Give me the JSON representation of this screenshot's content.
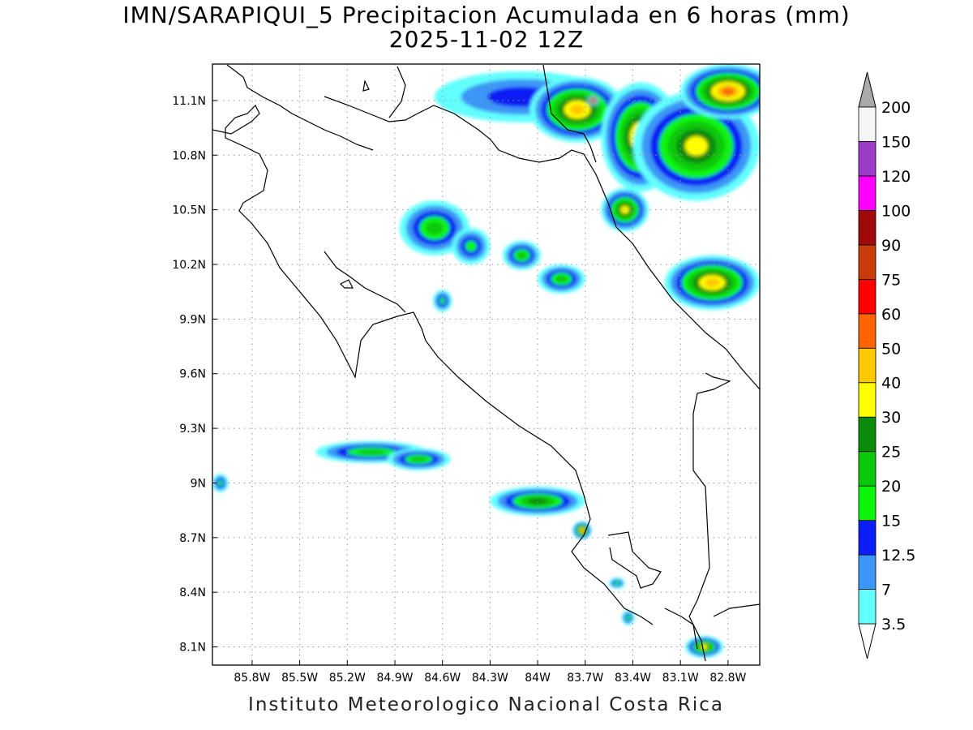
{
  "title": {
    "line1": "IMN/SARAPIQUI_5 Precipitacion Acumulada en 6 horas (mm)",
    "line2": "2025-11-02 12Z"
  },
  "footer": "Instituto Meteorologico Nacional Costa Rica",
  "map": {
    "lon_range": [
      -86.05,
      -82.6
    ],
    "lat_range": [
      8.0,
      11.3
    ],
    "lon_ticks": [
      {
        "v": -85.8,
        "label": "85.8W"
      },
      {
        "v": -85.5,
        "label": "85.5W"
      },
      {
        "v": -85.2,
        "label": "85.2W"
      },
      {
        "v": -84.9,
        "label": "84.9W"
      },
      {
        "v": -84.6,
        "label": "84.6W"
      },
      {
        "v": -84.3,
        "label": "84.3W"
      },
      {
        "v": -84.0,
        "label": "84W"
      },
      {
        "v": -83.7,
        "label": "83.7W"
      },
      {
        "v": -83.4,
        "label": "83.4W"
      },
      {
        "v": -83.1,
        "label": "83.1W"
      },
      {
        "v": -82.8,
        "label": "82.8W"
      }
    ],
    "lat_ticks": [
      {
        "v": 11.1,
        "label": "11.1N"
      },
      {
        "v": 10.8,
        "label": "10.8N"
      },
      {
        "v": 10.5,
        "label": "10.5N"
      },
      {
        "v": 10.2,
        "label": "10.2N"
      },
      {
        "v": 9.9,
        "label": "9.9N"
      },
      {
        "v": 9.6,
        "label": "9.6N"
      },
      {
        "v": 9.3,
        "label": "9.3N"
      },
      {
        "v": 9.0,
        "label": "9N"
      },
      {
        "v": 8.7,
        "label": "8.7N"
      },
      {
        "v": 8.4,
        "label": "8.4N"
      },
      {
        "v": 8.1,
        "label": "8.1N"
      }
    ],
    "grid": "dotted"
  },
  "colorbar": {
    "labels": [
      "3.5",
      "7",
      "12.5",
      "15",
      "20",
      "25",
      "30",
      "40",
      "50",
      "60",
      "75",
      "90",
      "100",
      "120",
      "150",
      "200"
    ],
    "colors": [
      "#62ffff",
      "#3c96f5",
      "#0a1ef5",
      "#0af50a",
      "#0ac80a",
      "#0a8c0a",
      "#ffff00",
      "#ffc800",
      "#ff6400",
      "#ff0000",
      "#c83c0a",
      "#a00a0a",
      "#ff00ff",
      "#9b3cc8",
      "#f5f5f5"
    ],
    "top_arrow_color": "#aaaaaa",
    "bottom_arrow_color": "#ffffff"
  },
  "precip_cells": [
    {
      "lon": -84.1,
      "lat": 11.12,
      "v": 14,
      "rx": 0.55,
      "ry": 0.14
    },
    {
      "lon": -83.75,
      "lat": 11.05,
      "v": 45,
      "rx": 0.3,
      "ry": 0.18
    },
    {
      "lon": -83.65,
      "lat": 11.1,
      "v": 120,
      "rx": 0.04,
      "ry": 0.03
    },
    {
      "lon": -83.35,
      "lat": 10.9,
      "v": 40,
      "rx": 0.25,
      "ry": 0.3
    },
    {
      "lon": -83.0,
      "lat": 10.85,
      "v": 35,
      "rx": 0.4,
      "ry": 0.3
    },
    {
      "lon": -82.8,
      "lat": 11.15,
      "v": 50,
      "rx": 0.3,
      "ry": 0.15
    },
    {
      "lon": -83.45,
      "lat": 10.5,
      "v": 30,
      "rx": 0.15,
      "ry": 0.12
    },
    {
      "lon": -82.9,
      "lat": 10.1,
      "v": 45,
      "rx": 0.3,
      "ry": 0.15
    },
    {
      "lon": -84.65,
      "lat": 10.4,
      "v": 20,
      "rx": 0.22,
      "ry": 0.15
    },
    {
      "lon": -84.42,
      "lat": 10.3,
      "v": 18,
      "rx": 0.12,
      "ry": 0.1
    },
    {
      "lon": -84.1,
      "lat": 10.25,
      "v": 22,
      "rx": 0.12,
      "ry": 0.08
    },
    {
      "lon": -83.85,
      "lat": 10.12,
      "v": 24,
      "rx": 0.15,
      "ry": 0.08
    },
    {
      "lon": -84.6,
      "lat": 10.0,
      "v": 18,
      "rx": 0.06,
      "ry": 0.06
    },
    {
      "lon": -85.05,
      "lat": 9.17,
      "v": 20,
      "rx": 0.35,
      "ry": 0.06
    },
    {
      "lon": -84.75,
      "lat": 9.13,
      "v": 24,
      "rx": 0.2,
      "ry": 0.06
    },
    {
      "lon": -84.0,
      "lat": 8.9,
      "v": 28,
      "rx": 0.3,
      "ry": 0.08
    },
    {
      "lon": -83.72,
      "lat": 8.74,
      "v": 40,
      "rx": 0.06,
      "ry": 0.05
    },
    {
      "lon": -82.95,
      "lat": 8.1,
      "v": 30,
      "rx": 0.12,
      "ry": 0.06
    },
    {
      "lon": -86.0,
      "lat": 9.0,
      "v": 18,
      "rx": 0.05,
      "ry": 0.05
    },
    {
      "lon": -83.5,
      "lat": 8.45,
      "v": 15,
      "rx": 0.05,
      "ry": 0.03
    },
    {
      "lon": -83.43,
      "lat": 8.26,
      "v": 15,
      "rx": 0.04,
      "ry": 0.04
    }
  ]
}
